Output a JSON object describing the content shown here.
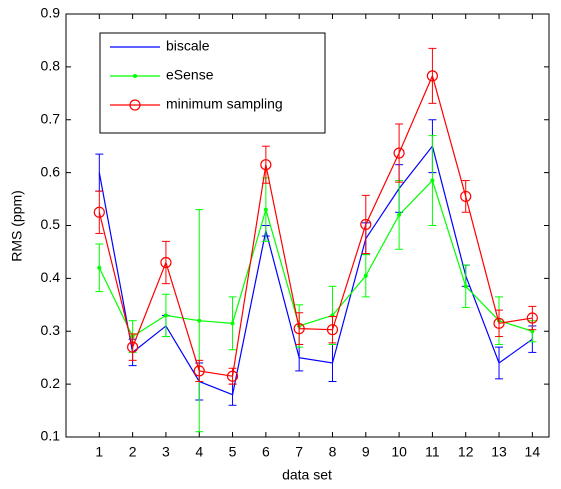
{
  "chart_data": {
    "type": "line",
    "xlabel": "data set",
    "ylabel": "RMS (ppm)",
    "x": [
      1,
      2,
      3,
      4,
      5,
      6,
      7,
      8,
      9,
      10,
      11,
      12,
      13,
      14
    ],
    "xlim": [
      0,
      14.5
    ],
    "xticks": [
      1,
      2,
      3,
      4,
      5,
      6,
      7,
      8,
      9,
      10,
      11,
      12,
      13,
      14
    ],
    "ylim": [
      0.1,
      0.9
    ],
    "yticks": [
      0.1,
      0.2,
      0.3,
      0.4,
      0.5,
      0.6,
      0.7,
      0.8,
      0.9
    ],
    "legend": "upper left",
    "series": [
      {
        "name": "biscale",
        "color": "#0000ff",
        "marker": "none",
        "values": [
          0.6,
          0.26,
          0.31,
          0.205,
          0.18,
          0.49,
          0.25,
          0.24,
          0.475,
          0.57,
          0.65,
          0.405,
          0.24,
          0.285
        ],
        "errors": [
          0.035,
          0.025,
          0.02,
          0.035,
          0.02,
          0.01,
          0.025,
          0.035,
          0.03,
          0.045,
          0.05,
          0.02,
          0.03,
          0.025
        ]
      },
      {
        "name": "eSense",
        "color": "#00ff00",
        "marker": "dot",
        "values": [
          0.42,
          0.29,
          0.33,
          0.32,
          0.315,
          0.53,
          0.31,
          0.33,
          0.405,
          0.52,
          0.585,
          0.385,
          0.32,
          0.3
        ],
        "errors": [
          0.045,
          0.03,
          0.04,
          0.21,
          0.05,
          0.06,
          0.04,
          0.055,
          0.04,
          0.065,
          0.085,
          0.04,
          0.045,
          0.02
        ]
      },
      {
        "name": "minimum sampling",
        "color": "#ff0000",
        "marker": "circle",
        "values": [
          0.525,
          0.27,
          0.43,
          0.225,
          0.215,
          0.615,
          0.305,
          0.303,
          0.502,
          0.637,
          0.783,
          0.555,
          0.315,
          0.325
        ],
        "errors": [
          0.04,
          0.025,
          0.04,
          0.02,
          0.015,
          0.035,
          0.03,
          0.025,
          0.055,
          0.055,
          0.052,
          0.03,
          0.025,
          0.022
        ]
      }
    ]
  }
}
